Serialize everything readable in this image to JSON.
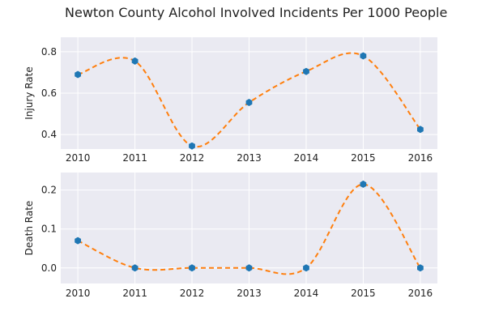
{
  "chart_data": {
    "type": "line",
    "title": "Newton County Alcohol Involved Incidents Per 1000 People",
    "x": [
      2010,
      2011,
      2012,
      2013,
      2014,
      2015,
      2016
    ],
    "panels": [
      {
        "ylabel": "Injury Rate",
        "xlabel": "",
        "ylim": [
          0.33,
          0.87
        ],
        "yticks": [
          0.4,
          0.6,
          0.8
        ],
        "ytick_labels": [
          "0.4",
          "0.6",
          "0.8"
        ],
        "series": [
          {
            "values": [
              0.69,
              0.755,
              0.345,
              0.555,
              0.705,
              0.78,
              0.425
            ]
          }
        ]
      },
      {
        "ylabel": "Death Rate",
        "xlabel": "",
        "ylim": [
          -0.04,
          0.245
        ],
        "yticks": [
          0.0,
          0.1,
          0.2
        ],
        "ytick_labels": [
          "0.0",
          "0.1",
          "0.2"
        ],
        "series": [
          {
            "values": [
              0.07,
              0.0,
              0.0,
              0.0,
              0.0,
              0.215,
              0.0
            ]
          }
        ]
      }
    ],
    "xtick_labels": [
      "2010",
      "2011",
      "2012",
      "2013",
      "2014",
      "2015",
      "2016"
    ],
    "grid": true,
    "colors": {
      "background": "#eaeaf2",
      "grid": "#ffffff",
      "marker": "#1f77b4",
      "fit_line": "#ff7f0e"
    }
  }
}
